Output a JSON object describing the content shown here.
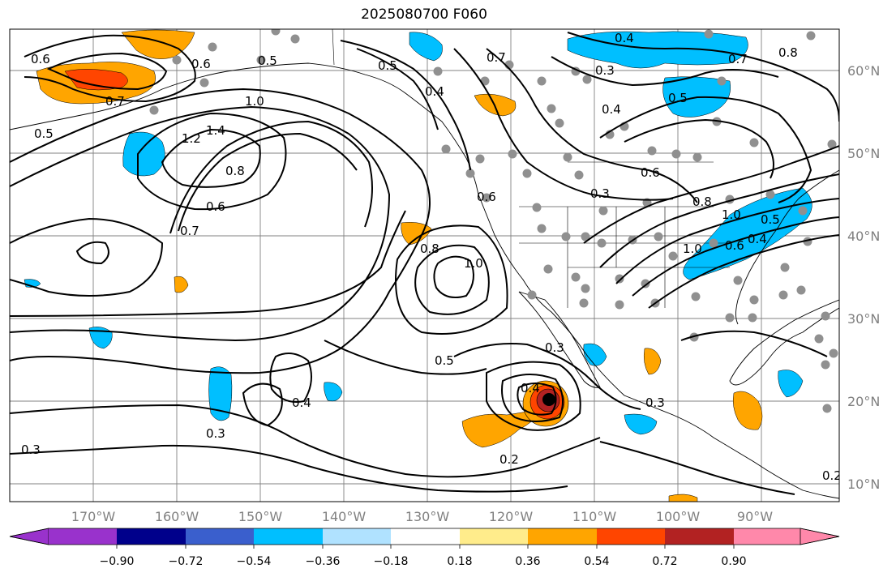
{
  "title": "2025080700 F060",
  "map": {
    "lon_labels": [
      "170°W",
      "160°W",
      "150°W",
      "140°W",
      "130°W",
      "120°W",
      "110°W",
      "100°W",
      "90°W"
    ],
    "lat_labels": [
      "60°N",
      "50°N",
      "40°N",
      "30°N",
      "20°N",
      "10°N"
    ],
    "contour_labels": [
      "0.6",
      "0.7",
      "0.5",
      "0.6",
      "0.5",
      "0.5",
      "1.0",
      "1.2",
      "1.4",
      "0.8",
      "0.6",
      "0.7",
      "0.4",
      "0.7",
      "0.4",
      "0.3",
      "0.4",
      "0.5",
      "0.7",
      "0.8",
      "0.6",
      "0.3",
      "1.0",
      "0.8",
      "1.0",
      "0.6",
      "1.0",
      "0.5",
      "0.3",
      "0.4",
      "0.3",
      "0.4",
      "0.3",
      "0.2",
      "0.3",
      "0.8",
      "0.6",
      "0.5",
      "0.4",
      "0.2"
    ],
    "colors": {
      "land_outline": "#000000",
      "grid": "#808080",
      "stations": "#909090",
      "contour": "#000000"
    }
  },
  "colorbar": {
    "labels": [
      "−0.90",
      "−0.72",
      "−0.54",
      "−0.36",
      "−0.18",
      "0.18",
      "0.36",
      "0.54",
      "0.72",
      "0.90"
    ],
    "colors": [
      "#9932cc",
      "#00008b",
      "#3a5fcd",
      "#00bfff",
      "#b0e2ff",
      "#ffffff",
      "#ffec8b",
      "#ffa500",
      "#ff4500",
      "#b22222",
      "#ff88aa"
    ]
  }
}
